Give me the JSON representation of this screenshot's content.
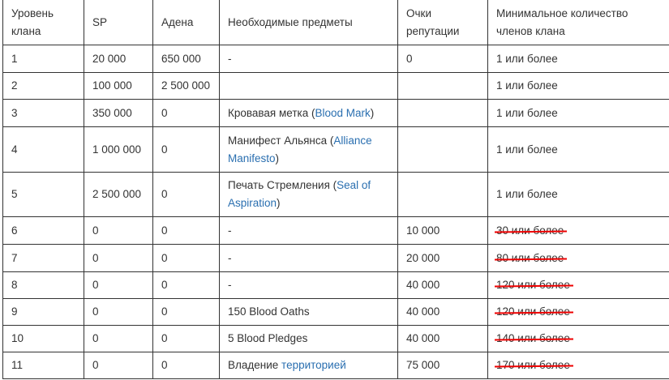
{
  "headers": [
    "Уровень клана",
    "SP",
    "Адена",
    "Необходимые предметы",
    "Очки репутации",
    "Минимальное количество членов клана"
  ],
  "rows": [
    {
      "level": "1",
      "sp": "20 000",
      "adena": "650 000",
      "items": [
        {
          "text": "-"
        }
      ],
      "rep": "0",
      "members": "1 или более",
      "struck": false
    },
    {
      "level": "2",
      "sp": "100 000",
      "adena": "2 500 000",
      "items": [],
      "rep": "",
      "members": "1 или более",
      "struck": false
    },
    {
      "level": "3",
      "sp": "350 000",
      "adena": "0",
      "items": [
        {
          "text": "Кровавая метка ("
        },
        {
          "text": "Blood Mark",
          "link": true
        },
        {
          "text": ")"
        }
      ],
      "rep": "",
      "members": "1 или более",
      "struck": false
    },
    {
      "level": "4",
      "sp": "1 000 000",
      "adena": "0",
      "items": [
        {
          "text": "Манифест Альянса ("
        },
        {
          "text": "Alliance Manifesto",
          "link": true
        },
        {
          "text": ")"
        }
      ],
      "rep": "",
      "members": "1 или более",
      "struck": false
    },
    {
      "level": "5",
      "sp": "2 500 000",
      "adena": "0",
      "items": [
        {
          "text": "Печать Стремления ("
        },
        {
          "text": "Seal of Aspiration",
          "link": true
        },
        {
          "text": ")"
        }
      ],
      "rep": "",
      "members": "1 или более",
      "struck": false
    },
    {
      "level": "6",
      "sp": "0",
      "adena": "0",
      "items": [
        {
          "text": "-"
        }
      ],
      "rep": "10 000",
      "members": "30 или более",
      "struck": true
    },
    {
      "level": "7",
      "sp": "0",
      "adena": "0",
      "items": [
        {
          "text": "-"
        }
      ],
      "rep": "20 000",
      "members": "80 или более",
      "struck": true
    },
    {
      "level": "8",
      "sp": "0",
      "adena": "0",
      "items": [
        {
          "text": "-"
        }
      ],
      "rep": "40 000",
      "members": "120 или более",
      "struck": true
    },
    {
      "level": "9",
      "sp": "0",
      "adena": "0",
      "items": [
        {
          "text": "150 Blood Oaths"
        }
      ],
      "rep": "40 000",
      "members": "120 или более",
      "struck": true
    },
    {
      "level": "10",
      "sp": "0",
      "adena": "0",
      "items": [
        {
          "text": "5 Blood Pledges"
        }
      ],
      "rep": "40 000",
      "members": "140 или более",
      "struck": true
    },
    {
      "level": "11",
      "sp": "0",
      "adena": "0",
      "items": [
        {
          "text": "Владение "
        },
        {
          "text": "территорией",
          "link": true
        }
      ],
      "rep": "75 000",
      "members": "170 или более",
      "struck": true
    }
  ],
  "colors": {
    "link": "#2a6fb0",
    "strike": "#e00000",
    "border": "#333333"
  }
}
